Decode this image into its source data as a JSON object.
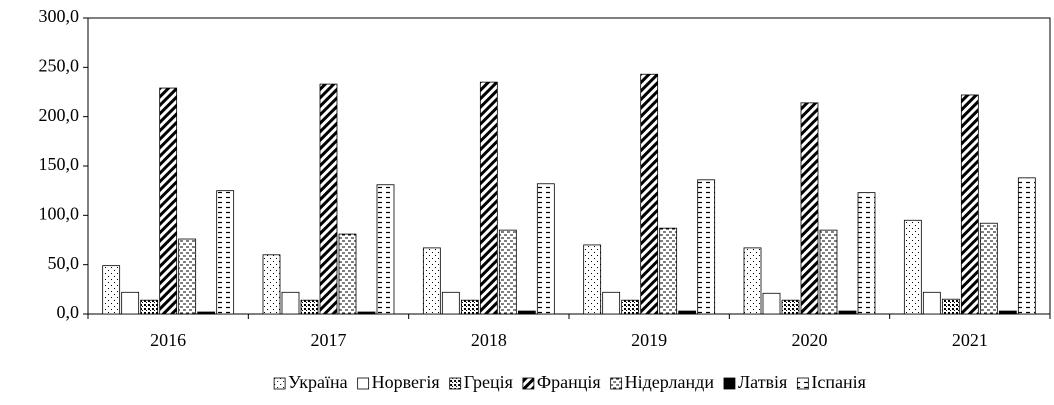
{
  "chart_data": {
    "type": "bar",
    "categories": [
      "2016",
      "2017",
      "2018",
      "2019",
      "2020",
      "2021"
    ],
    "series": [
      {
        "name": "Україна",
        "color": "#000000",
        "values": [
          49,
          60,
          67,
          70,
          67,
          95
        ]
      },
      {
        "name": "Норвегія",
        "color": "#000000",
        "values": [
          22,
          22,
          22,
          22,
          21,
          22
        ]
      },
      {
        "name": "Греція",
        "color": "#000000",
        "values": [
          14,
          14,
          14,
          14,
          14,
          15
        ]
      },
      {
        "name": "Франція",
        "color": "#000000",
        "values": [
          229,
          233,
          235,
          243,
          214,
          222
        ]
      },
      {
        "name": "Нідерланди",
        "color": "#000000",
        "values": [
          76,
          81,
          85,
          87,
          85,
          92
        ]
      },
      {
        "name": "Латвія",
        "color": "#000000",
        "values": [
          2,
          2,
          3,
          3,
          3,
          3
        ]
      },
      {
        "name": "Іспанія",
        "color": "#000000",
        "values": [
          125,
          131,
          132,
          136,
          123,
          138
        ]
      }
    ],
    "ylim": [
      0,
      300
    ],
    "yticks": [
      {
        "value": 0,
        "label": "0,0"
      },
      {
        "value": 50,
        "label": "50,0"
      },
      {
        "value": 100,
        "label": "100,0"
      },
      {
        "value": 150,
        "label": "150,0"
      },
      {
        "value": 200,
        "label": "200,0"
      },
      {
        "value": 250,
        "label": "250,0"
      },
      {
        "value": 300,
        "label": "300,0"
      }
    ],
    "grid": false,
    "legend": "bottom"
  }
}
